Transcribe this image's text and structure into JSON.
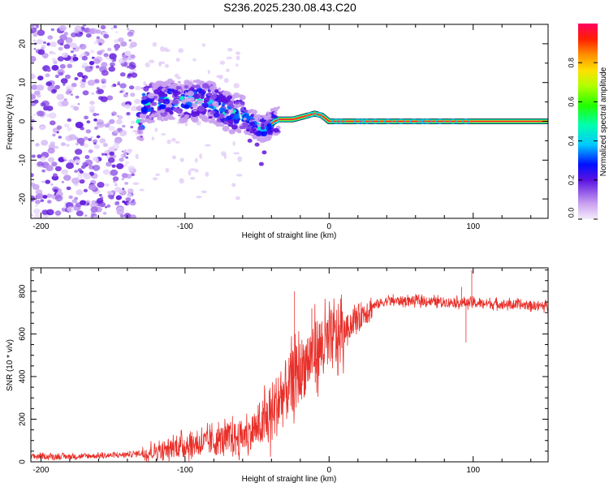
{
  "figure_title": "S236.2025.230.08.43.C20",
  "chart_data": [
    {
      "type": "heatmap",
      "title": "S236.2025.230.08.43.C20",
      "xlabel": "Height of straight line (km)",
      "ylabel": "Frequency (Hz)",
      "xlim": [
        -207,
        152
      ],
      "ylim": [
        -25,
        25
      ],
      "xticks": [
        -200,
        -100,
        0,
        100
      ],
      "yticks": [
        -20,
        -10,
        0,
        10,
        20
      ],
      "colorbar": {
        "label": "Normalized spectral amplitude",
        "range": [
          0,
          1
        ],
        "ticks": [
          "0.0",
          "0.2",
          "0.4",
          "0.6",
          "0.8"
        ],
        "tick_values": [
          0.0,
          0.2,
          0.4,
          0.6,
          0.8
        ]
      },
      "frequency_track": [
        {
          "x": -130,
          "y": 5.0
        },
        {
          "x": -120,
          "y": 5.0
        },
        {
          "x": -110,
          "y": 5.5
        },
        {
          "x": -100,
          "y": 5.0
        },
        {
          "x": -90,
          "y": 5.5
        },
        {
          "x": -80,
          "y": 4.5
        },
        {
          "x": -70,
          "y": 2.5
        },
        {
          "x": -60,
          "y": 1.5
        },
        {
          "x": -50,
          "y": -1.5
        },
        {
          "x": -45,
          "y": -2.0
        },
        {
          "x": -40,
          "y": -0.5
        },
        {
          "x": -35,
          "y": 0.5
        },
        {
          "x": -25,
          "y": 0.5
        },
        {
          "x": -15,
          "y": 1.5
        },
        {
          "x": -10,
          "y": 2.0
        },
        {
          "x": -5,
          "y": 1.5
        },
        {
          "x": 0,
          "y": 0.0
        },
        {
          "x": 150,
          "y": 0.0
        }
      ],
      "noise_region_x": [
        -207,
        -135
      ]
    },
    {
      "type": "line",
      "xlabel": "Height of straight line (km)",
      "ylabel": "SNR (10 * v/v)",
      "xlim": [
        -207,
        152
      ],
      "ylim": [
        0,
        910
      ],
      "xticks": [
        -200,
        -100,
        0,
        100
      ],
      "yticks": [
        0,
        200,
        400,
        600,
        800
      ],
      "series": [
        {
          "name": "SNR",
          "color": "#e8302a",
          "trend": [
            {
              "x": -207,
              "y": 25
            },
            {
              "x": -180,
              "y": 25
            },
            {
              "x": -150,
              "y": 30
            },
            {
              "x": -130,
              "y": 40
            },
            {
              "x": -100,
              "y": 80
            },
            {
              "x": -80,
              "y": 95
            },
            {
              "x": -60,
              "y": 120
            },
            {
              "x": -45,
              "y": 170
            },
            {
              "x": -40,
              "y": 230
            },
            {
              "x": -35,
              "y": 280
            },
            {
              "x": -30,
              "y": 330
            },
            {
              "x": -25,
              "y": 380
            },
            {
              "x": -20,
              "y": 430
            },
            {
              "x": -15,
              "y": 470
            },
            {
              "x": -10,
              "y": 520
            },
            {
              "x": 0,
              "y": 560
            },
            {
              "x": 10,
              "y": 610
            },
            {
              "x": 20,
              "y": 680
            },
            {
              "x": 30,
              "y": 730
            },
            {
              "x": 40,
              "y": 755
            },
            {
              "x": 60,
              "y": 755
            },
            {
              "x": 80,
              "y": 750
            },
            {
              "x": 100,
              "y": 745
            },
            {
              "x": 120,
              "y": 740
            },
            {
              "x": 152,
              "y": 730
            }
          ],
          "spikes": [
            {
              "x": -24,
              "y": 800
            },
            {
              "x": -12,
              "y": 720
            },
            {
              "x": -5,
              "y": 660
            },
            {
              "x": 92,
              "y": 820
            },
            {
              "x": 99,
              "y": 900
            },
            {
              "x": 95,
              "y": 560
            }
          ]
        }
      ]
    }
  ]
}
